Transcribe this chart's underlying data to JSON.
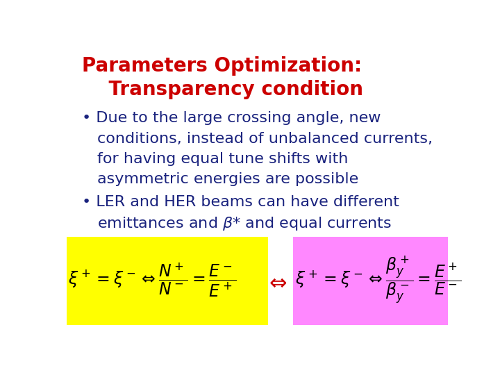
{
  "title_line1": "Parameters Optimization:",
  "title_line2": "    Transparency condition",
  "title_color": "#cc0000",
  "title_fontsize": 20,
  "bullet1_line1": "Due to the large crossing angle, new",
  "bullet1_line2": "conditions, instead of unbalanced currents,",
  "bullet1_line3": "for having equal tune shifts with",
  "bullet1_line4": "asymmetric energies are possible",
  "bullet2_line1": "LER and HER beams can have different",
  "bullet2_line2": "emittances and $\\beta$* and equal currents",
  "body_color": "#1a237e",
  "body_fontsize": 16,
  "bg_color": "#ffffff",
  "yellow_box_color": "#ffff00",
  "pink_box_color": "#ff88ff",
  "formula1": "$\\xi^+ = \\xi^- \\Leftrightarrow \\dfrac{N^+}{N^-} = \\dfrac{E^-}{E^+}$",
  "formula2": "$\\xi^+ = \\xi^- \\Leftrightarrow \\dfrac{\\beta_y^+}{\\beta_y^-} = \\dfrac{E^+}{E^-}$",
  "formula_fontsize": 17,
  "arrow_label": "$\\Leftrightarrow$",
  "arrow_color": "#cc0000"
}
